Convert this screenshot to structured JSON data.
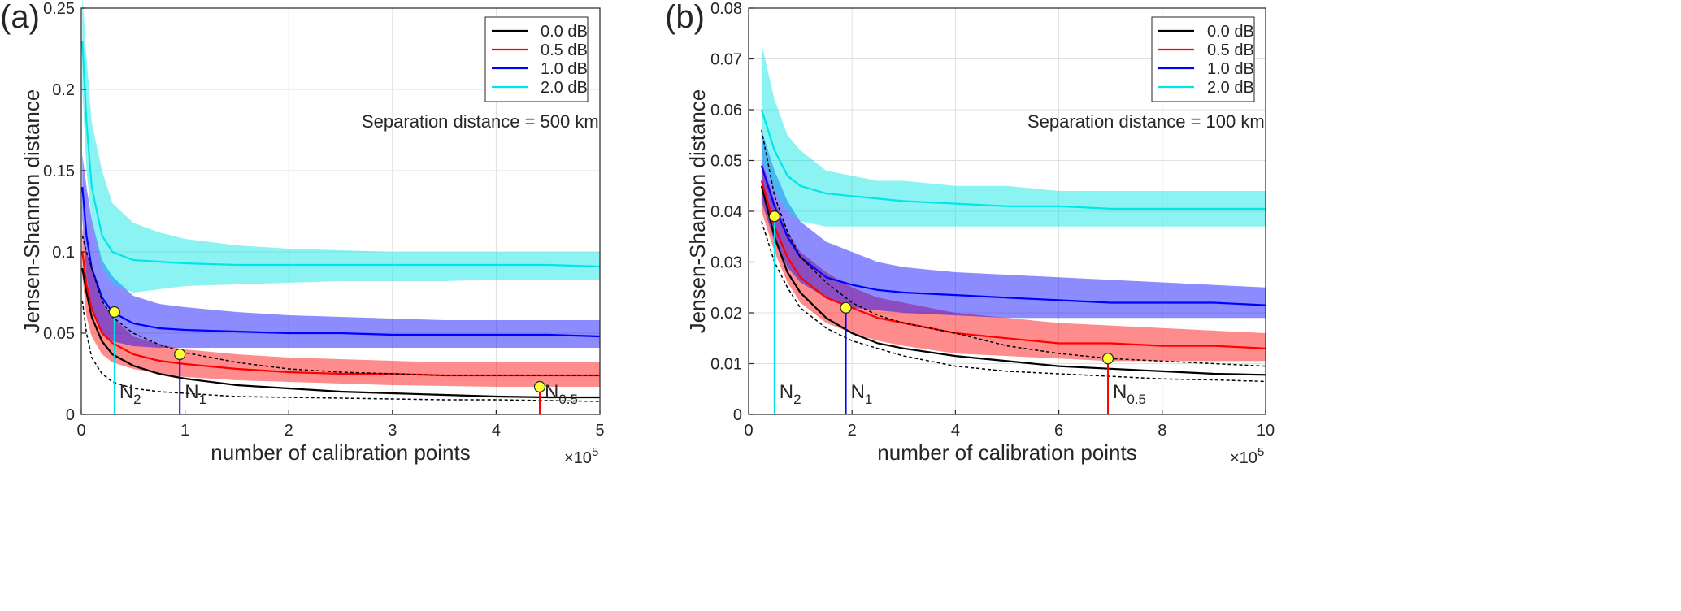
{
  "chart_data": [
    {
      "type": "line",
      "panel_label": "(a)",
      "xlabel": "number of calibration points",
      "ylabel": "Jensen-Shannon distance",
      "x_exponent_label": "×10",
      "x_exponent_power": "5",
      "xlim": [
        0,
        5
      ],
      "ylim": [
        0,
        0.25
      ],
      "x_ticks": [
        0,
        1,
        2,
        3,
        4,
        5
      ],
      "x_tick_labels": [
        "0",
        "1",
        "2",
        "3",
        "4",
        "5"
      ],
      "y_ticks": [
        0,
        0.05,
        0.1,
        0.15,
        0.2,
        0.25
      ],
      "y_tick_labels": [
        "0",
        "0.05",
        "0.1",
        "0.15",
        "0.2",
        "0.25"
      ],
      "grid": true,
      "legend_position": "top-right",
      "annotation": "Separation distance = 500 km",
      "x": [
        0.01,
        0.05,
        0.1,
        0.2,
        0.3,
        0.5,
        0.75,
        1,
        1.5,
        2,
        2.5,
        3,
        3.5,
        4,
        4.5,
        5
      ],
      "series": [
        {
          "name": "0.0 dB",
          "color": "#000000",
          "values": [
            0.09,
            0.075,
            0.06,
            0.045,
            0.037,
            0.03,
            0.025,
            0.022,
            0.018,
            0.016,
            0.014,
            0.013,
            0.012,
            0.011,
            0.0105,
            0.0105
          ]
        },
        {
          "name": "0.5 dB",
          "color": "#ff0000",
          "band_lower": [
            0.085,
            0.06,
            0.048,
            0.037,
            0.032,
            0.028,
            0.025,
            0.023,
            0.021,
            0.02,
            0.019,
            0.018,
            0.0175,
            0.017,
            0.017,
            0.017
          ],
          "band_upper": [
            0.115,
            0.1,
            0.09,
            0.07,
            0.06,
            0.048,
            0.043,
            0.04,
            0.037,
            0.035,
            0.034,
            0.033,
            0.032,
            0.032,
            0.032,
            0.032
          ],
          "values": [
            0.1,
            0.08,
            0.065,
            0.05,
            0.044,
            0.037,
            0.033,
            0.031,
            0.028,
            0.026,
            0.025,
            0.025,
            0.024,
            0.024,
            0.024,
            0.024
          ]
        },
        {
          "name": "1.0 dB",
          "color": "#0000ff",
          "band_lower": [
            0.12,
            0.085,
            0.065,
            0.05,
            0.045,
            0.042,
            0.041,
            0.041,
            0.041,
            0.041,
            0.041,
            0.041,
            0.041,
            0.041,
            0.041,
            0.041
          ],
          "band_upper": [
            0.16,
            0.14,
            0.12,
            0.095,
            0.085,
            0.073,
            0.068,
            0.066,
            0.063,
            0.061,
            0.06,
            0.059,
            0.058,
            0.058,
            0.058,
            0.058
          ],
          "values": [
            0.14,
            0.11,
            0.09,
            0.072,
            0.063,
            0.056,
            0.053,
            0.052,
            0.051,
            0.05,
            0.05,
            0.049,
            0.049,
            0.049,
            0.049,
            0.048
          ]
        },
        {
          "name": "2.0 dB",
          "color": "#00e5e5",
          "band_lower": [
            0.2,
            0.15,
            0.12,
            0.09,
            0.08,
            0.075,
            0.077,
            0.079,
            0.08,
            0.081,
            0.082,
            0.082,
            0.082,
            0.083,
            0.083,
            0.083
          ],
          "band_upper": [
            0.26,
            0.22,
            0.18,
            0.15,
            0.13,
            0.118,
            0.112,
            0.108,
            0.104,
            0.102,
            0.101,
            0.1,
            0.1,
            0.1,
            0.1,
            0.1
          ],
          "values": [
            0.23,
            0.18,
            0.14,
            0.11,
            0.1,
            0.095,
            0.094,
            0.093,
            0.092,
            0.092,
            0.092,
            0.092,
            0.092,
            0.092,
            0.092,
            0.091
          ]
        },
        {
          "name": "",
          "color": "#000000",
          "dashed": true,
          "values": [
            0.11,
            0.1,
            0.09,
            0.07,
            0.06,
            0.05,
            0.043,
            0.038,
            0.032,
            0.028,
            0.026,
            0.025,
            0.024,
            0.024,
            0.024,
            0.024
          ]
        },
        {
          "name": "",
          "color": "#000000",
          "dashed": true,
          "values": [
            0.07,
            0.05,
            0.035,
            0.025,
            0.02,
            0.016,
            0.014,
            0.013,
            0.011,
            0.0105,
            0.01,
            0.0095,
            0.009,
            0.009,
            0.0085,
            0.008
          ]
        }
      ],
      "markers": [
        {
          "label": "N",
          "sub": "2",
          "x": 0.32,
          "y": 0.063,
          "color": "#00e5e5"
        },
        {
          "label": "N",
          "sub": "1",
          "x": 0.95,
          "y": 0.037,
          "color": "#0000ff"
        },
        {
          "label": "N",
          "sub": "0.5",
          "x": 4.42,
          "y": 0.017,
          "color": "#ff0000"
        }
      ]
    },
    {
      "type": "line",
      "panel_label": "(b)",
      "xlabel": "number of calibration points",
      "ylabel": "Jensen-Shannon distance",
      "x_exponent_label": "×10",
      "x_exponent_power": "5",
      "xlim": [
        0,
        10
      ],
      "ylim": [
        0,
        0.08
      ],
      "x_ticks": [
        0,
        2,
        4,
        6,
        8,
        10
      ],
      "x_tick_labels": [
        "0",
        "2",
        "4",
        "6",
        "8",
        "10"
      ],
      "y_ticks": [
        0,
        0.01,
        0.02,
        0.03,
        0.04,
        0.05,
        0.06,
        0.07,
        0.08
      ],
      "y_tick_labels": [
        "0",
        "0.01",
        "0.02",
        "0.03",
        "0.04",
        "0.05",
        "0.06",
        "0.07",
        "0.08"
      ],
      "grid": true,
      "legend_position": "top-right",
      "annotation": "Separation distance = 100 km",
      "x": [
        0.25,
        0.5,
        0.75,
        1,
        1.5,
        2,
        2.5,
        3,
        4,
        5,
        6,
        7,
        8,
        9,
        10
      ],
      "series": [
        {
          "name": "0.0 dB",
          "color": "#000000",
          "values": [
            0.045,
            0.035,
            0.028,
            0.024,
            0.019,
            0.016,
            0.014,
            0.013,
            0.0115,
            0.0105,
            0.0095,
            0.009,
            0.0085,
            0.008,
            0.0078
          ]
        },
        {
          "name": "0.5 dB",
          "color": "#ff0000",
          "band_lower": [
            0.04,
            0.032,
            0.026,
            0.022,
            0.018,
            0.016,
            0.0145,
            0.0135,
            0.012,
            0.0115,
            0.011,
            0.0105,
            0.0105,
            0.0105,
            0.0105
          ],
          "band_upper": [
            0.05,
            0.042,
            0.036,
            0.032,
            0.028,
            0.025,
            0.023,
            0.022,
            0.02,
            0.019,
            0.018,
            0.0175,
            0.017,
            0.0165,
            0.016
          ],
          "values": [
            0.046,
            0.037,
            0.031,
            0.027,
            0.023,
            0.021,
            0.019,
            0.018,
            0.016,
            0.015,
            0.014,
            0.014,
            0.0135,
            0.0135,
            0.013
          ]
        },
        {
          "name": "1.0 dB",
          "color": "#0000ff",
          "band_lower": [
            0.042,
            0.034,
            0.029,
            0.026,
            0.023,
            0.021,
            0.0205,
            0.02,
            0.0195,
            0.019,
            0.019,
            0.019,
            0.019,
            0.019,
            0.019
          ],
          "band_upper": [
            0.056,
            0.048,
            0.042,
            0.038,
            0.034,
            0.032,
            0.03,
            0.029,
            0.028,
            0.0275,
            0.027,
            0.0265,
            0.026,
            0.0255,
            0.025
          ],
          "values": [
            0.049,
            0.041,
            0.035,
            0.031,
            0.027,
            0.0255,
            0.0245,
            0.024,
            0.0235,
            0.023,
            0.0225,
            0.022,
            0.022,
            0.022,
            0.0215
          ]
        },
        {
          "name": "2.0 dB",
          "color": "#00e5e5",
          "band_lower": [
            0.05,
            0.044,
            0.04,
            0.038,
            0.037,
            0.037,
            0.037,
            0.037,
            0.037,
            0.037,
            0.037,
            0.037,
            0.037,
            0.037,
            0.037
          ],
          "band_upper": [
            0.073,
            0.062,
            0.055,
            0.052,
            0.048,
            0.047,
            0.046,
            0.046,
            0.045,
            0.045,
            0.044,
            0.044,
            0.044,
            0.044,
            0.044
          ],
          "values": [
            0.06,
            0.052,
            0.047,
            0.045,
            0.0435,
            0.043,
            0.0425,
            0.042,
            0.0415,
            0.041,
            0.041,
            0.0405,
            0.0405,
            0.0405,
            0.0405
          ]
        },
        {
          "name": "",
          "color": "#000000",
          "dashed": true,
          "values": [
            0.056,
            0.043,
            0.036,
            0.031,
            0.026,
            0.022,
            0.0195,
            0.018,
            0.016,
            0.0135,
            0.012,
            0.011,
            0.0105,
            0.01,
            0.0095
          ]
        },
        {
          "name": "",
          "color": "#000000",
          "dashed": true,
          "values": [
            0.038,
            0.03,
            0.025,
            0.021,
            0.017,
            0.0145,
            0.013,
            0.0115,
            0.0095,
            0.0085,
            0.008,
            0.0075,
            0.007,
            0.0068,
            0.0065
          ]
        }
      ],
      "markers": [
        {
          "label": "N",
          "sub": "2",
          "x": 0.5,
          "y": 0.039,
          "color": "#00e5e5"
        },
        {
          "label": "N",
          "sub": "1",
          "x": 1.88,
          "y": 0.021,
          "color": "#0000ff"
        },
        {
          "label": "N",
          "sub": "0.5",
          "x": 6.95,
          "y": 0.011,
          "color": "#ff0000"
        }
      ]
    }
  ]
}
